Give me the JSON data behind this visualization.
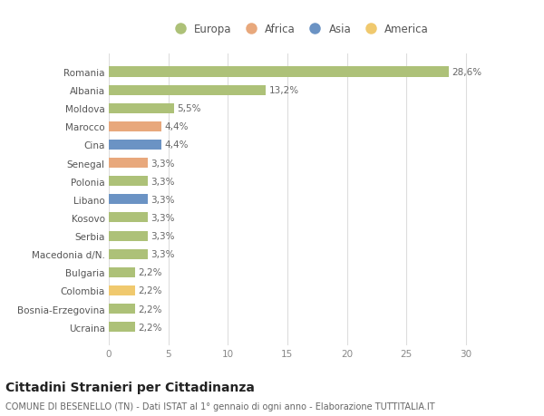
{
  "countries": [
    "Romania",
    "Albania",
    "Moldova",
    "Marocco",
    "Cina",
    "Senegal",
    "Polonia",
    "Libano",
    "Kosovo",
    "Serbia",
    "Macedonia d/N.",
    "Bulgaria",
    "Colombia",
    "Bosnia-Erzegovina",
    "Ucraina"
  ],
  "values": [
    28.6,
    13.2,
    5.5,
    4.4,
    4.4,
    3.3,
    3.3,
    3.3,
    3.3,
    3.3,
    3.3,
    2.2,
    2.2,
    2.2,
    2.2
  ],
  "labels": [
    "28,6%",
    "13,2%",
    "5,5%",
    "4,4%",
    "4,4%",
    "3,3%",
    "3,3%",
    "3,3%",
    "3,3%",
    "3,3%",
    "3,3%",
    "2,2%",
    "2,2%",
    "2,2%",
    "2,2%"
  ],
  "continents": [
    "Europa",
    "Europa",
    "Europa",
    "Africa",
    "Asia",
    "Africa",
    "Europa",
    "Asia",
    "Europa",
    "Europa",
    "Europa",
    "Europa",
    "America",
    "Europa",
    "Europa"
  ],
  "colors": {
    "Europa": "#adc178",
    "Africa": "#e8a87c",
    "Asia": "#6b93c4",
    "America": "#f0c96e"
  },
  "xlim": [
    0,
    32
  ],
  "xticks": [
    0,
    5,
    10,
    15,
    20,
    25,
    30
  ],
  "title": "Cittadini Stranieri per Cittadinanza",
  "subtitle": "COMUNE DI BESENELLO (TN) - Dati ISTAT al 1° gennaio di ogni anno - Elaborazione TUTTITALIA.IT",
  "background_color": "#ffffff",
  "grid_color": "#dddddd",
  "bar_height": 0.55,
  "label_fontsize": 7.5,
  "tick_fontsize": 7.5,
  "title_fontsize": 10,
  "subtitle_fontsize": 7
}
